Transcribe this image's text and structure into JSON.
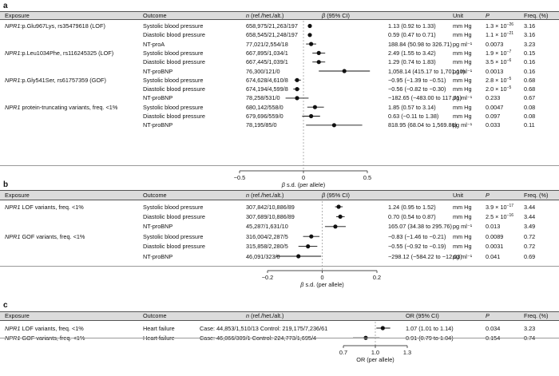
{
  "panels": [
    {
      "label": "a",
      "headers": {
        "exposure": "Exposure",
        "outcome": "Outcome",
        "n": "n (ref./het./alt.)",
        "beta": "β (95% CI)",
        "unit": "Unit",
        "p": "P",
        "freq": "Freq. (%)"
      },
      "groups": [
        {
          "gene": "NPR1",
          "rest": ":p.Glu967Lys, rs35479618 (LOF)",
          "rows": [
            {
              "outcome": "Systolic blood pressure",
              "n": "658,975/21,263/197",
              "ci": "1.13 (0.92 to 1.33)",
              "unit": "mm Hg",
              "p": "1.3 × 10",
              "pexp": "−26",
              "freq": "3.16",
              "est": 1.13,
              "lo": 0.92,
              "hi": 1.33
            },
            {
              "outcome": "Diastolic blood pressure",
              "n": "658,545/21,248/197",
              "ci": "0.59 (0.47 to 0.71)",
              "unit": "mm Hg",
              "p": "1.1 × 10",
              "pexp": "−21",
              "freq": "3.16",
              "est": 0.59,
              "lo": 0.47,
              "hi": 0.71
            },
            {
              "outcome": "NT-proA",
              "n": "77,021/2,554/18",
              "ci": "188.84 (50.98 to 326.71)",
              "unit": "pg ml⁻¹",
              "p": "0.0073",
              "pexp": "",
              "freq": "3.23",
              "est": 188.84,
              "lo": 50.98,
              "hi": 326.71
            }
          ]
        },
        {
          "gene": "NPR1",
          "rest": ":p.Leu1034Phe, rs116245325 (LOF)",
          "rows": [
            {
              "outcome": "Systolic blood pressure",
              "n": "667,895/1,034/1",
              "ci": "2.49 (1.55 to 3.42)",
              "unit": "mm Hg",
              "p": "1.9 × 10",
              "pexp": "−7",
              "freq": "0.15",
              "est": 2.49,
              "lo": 1.55,
              "hi": 3.42
            },
            {
              "outcome": "Diastolic blood pressure",
              "n": "667,445/1,039/1",
              "ci": "1.29 (0.74 to 1.83)",
              "unit": "mm Hg",
              "p": "3.5 × 10",
              "pexp": "−6",
              "freq": "0.16",
              "est": 1.29,
              "lo": 0.74,
              "hi": 1.83
            },
            {
              "outcome": "NT-proBNP",
              "n": "76,300/121/0",
              "ci": "1,058.14 (415.17 to 1,701.10)",
              "unit": "pg ml⁻¹",
              "p": "0.0013",
              "pexp": "",
              "freq": "0.16",
              "est": 1058.14,
              "lo": 415.17,
              "hi": 1701.1
            }
          ]
        },
        {
          "gene": "NPR1",
          "rest": ":p.Gly541Ser, rs61757359 (GOF)",
          "rows": [
            {
              "outcome": "Systolic blood pressure",
              "n": "674,628/4,610/8",
              "ci": "−0.95 (−1.39 to −0.51)",
              "unit": "mm Hg",
              "p": "2.8 × 10",
              "pexp": "−5",
              "freq": "0.68",
              "est": -0.95,
              "lo": -1.39,
              "hi": -0.51
            },
            {
              "outcome": "Diastolic blood pressure",
              "n": "674,194/4,599/8",
              "ci": "−0.56 (−0.82 to −0.30)",
              "unit": "mm Hg",
              "p": "2.0 × 10",
              "pexp": "−5",
              "freq": "0.68",
              "est": -0.56,
              "lo": -0.82,
              "hi": -0.3
            },
            {
              "outcome": "NT-proBNP",
              "n": "78,258/531/0",
              "ci": "−182.65 (−483.00 to 117.71)",
              "unit": "pg ml⁻¹",
              "p": "0.233",
              "pexp": "",
              "freq": "0.67",
              "est": -182.65,
              "lo": -483.0,
              "hi": 117.71
            }
          ]
        },
        {
          "gene": "NPR1",
          "rest": " protein-truncating variants, freq. <1%",
          "rows": [
            {
              "outcome": "Systolic blood pressure",
              "n": "680,142/558/0",
              "ci": "1.85 (0.57 to 3.14)",
              "unit": "mm Hg",
              "p": "0.0047",
              "pexp": "",
              "freq": "0.08",
              "est": 1.85,
              "lo": 0.57,
              "hi": 3.14
            },
            {
              "outcome": "Diastolic blood pressure",
              "n": "679,696/559/0",
              "ci": "0.63 (−0.11 to 1.38)",
              "unit": "mm Hg",
              "p": "0.097",
              "pexp": "",
              "freq": "0.08",
              "est": 0.63,
              "lo": -0.11,
              "hi": 1.38
            },
            {
              "outcome": "NT-proBNP",
              "n": "78,195/85/0",
              "ci": "818.95 (68.04 to 1,569.86)",
              "unit": "pg ml⁻¹",
              "p": "0.033",
              "pexp": "",
              "freq": "0.11",
              "est": 818.95,
              "lo": 68.04,
              "hi": 1569.86
            }
          ]
        }
      ],
      "axis": {
        "ticks": [
          "−0.5",
          "0",
          "0.5"
        ],
        "label": "β s.d. (per allele)"
      }
    },
    {
      "label": "b",
      "headers": {
        "exposure": "Exposure",
        "outcome": "Outcome",
        "n": "n (ref./het./alt.)",
        "beta": "β (95% CI)",
        "unit": "Unit",
        "p": "P",
        "freq": "Freq. (%)"
      },
      "groups": [
        {
          "gene": "NPR1",
          "rest": " LOF variants, freq. <1%",
          "rows": [
            {
              "outcome": "Systolic blood pressure",
              "n": "307,842/10,886/89",
              "ci": "1.24 (0.95 to 1.52)",
              "unit": "mm Hg",
              "p": "3.9 × 10",
              "pexp": "−17",
              "freq": "3.44",
              "est": 1.24,
              "lo": 0.95,
              "hi": 1.52
            },
            {
              "outcome": "Diastolic blood pressure",
              "n": "307,689/10,886/89",
              "ci": "0.70 (0.54 to 0.87)",
              "unit": "mm Hg",
              "p": "2.5 × 10",
              "pexp": "−16",
              "freq": "3.44",
              "est": 0.7,
              "lo": 0.54,
              "hi": 0.87
            },
            {
              "outcome": "NT-proBNP",
              "n": "45,287/1,631/10",
              "ci": "165.07 (34.38 to 295.76)",
              "unit": "pg ml⁻¹",
              "p": "0.013",
              "pexp": "",
              "freq": "3.49",
              "est": 165.07,
              "lo": 34.38,
              "hi": 295.76
            }
          ]
        },
        {
          "gene": "NPR1",
          "rest": " GOF variants, freq. <1%",
          "rows": [
            {
              "outcome": "Systolic blood pressure",
              "n": "316,004/2,287/5",
              "ci": "−0.83 (−1.46 to −0.21)",
              "unit": "mm Hg",
              "p": "0.0089",
              "pexp": "",
              "freq": "0.72",
              "est": -0.83,
              "lo": -1.46,
              "hi": -0.21
            },
            {
              "outcome": "Diastolic blood pressure",
              "n": "315,858/2,280/5",
              "ci": "−0.55 (−0.92 to −0.19)",
              "unit": "mm Hg",
              "p": "0.0031",
              "pexp": "",
              "freq": "0.72",
              "est": -0.55,
              "lo": -0.92,
              "hi": -0.19
            },
            {
              "outcome": "NT-proBNP",
              "n": "46,091/323/0",
              "ci": "−298.12 (−584.22 to −12.03)",
              "unit": "pg ml⁻¹",
              "p": "0.041",
              "pexp": "",
              "freq": "0.69",
              "est": -298.12,
              "lo": -584.22,
              "hi": -12.03
            }
          ]
        }
      ],
      "axis": {
        "ticks": [
          "−0.2",
          "0",
          "0.2"
        ],
        "label": "β s.d. (per allele)"
      }
    },
    {
      "label": "c",
      "headers": {
        "exposure": "Exposure",
        "outcome": "Outcome",
        "n": "n (ref./het./alt.)",
        "beta": "OR (95% CI)",
        "unit": "",
        "p": "P",
        "freq": "Freq. (%)"
      },
      "groups": [
        {
          "gene": "NPR1",
          "rest": " LOF variants, freq. <1%",
          "rows": [
            {
              "outcome": "Heart failure",
              "n": "Case: 44,853/1,510/13  Control: 219,175/7,236/61",
              "ci": "1.07 (1.01 to 1.14)",
              "unit": "",
              "p": "0.034",
              "pexp": "",
              "freq": "3.23",
              "est": 1.07,
              "lo": 1.01,
              "hi": 1.14
            }
          ]
        },
        {
          "gene": "NPR1",
          "rest": " GOF variants, freq. <1%",
          "rows": [
            {
              "outcome": "Heart failure",
              "n": "Case: 46,066/309/1  Control: 224,773/1,695/4",
              "ci": "0.91 (0.79 to 1.04)",
              "unit": "",
              "p": "0.154",
              "pexp": "",
              "freq": "0.74",
              "est": 0.91,
              "lo": 0.79,
              "hi": 1.04
            }
          ]
        }
      ],
      "axis": {
        "ticks": [
          "0.7",
          "1.0",
          "1.3"
        ],
        "label": "OR (per allele)"
      }
    }
  ],
  "chart_data": [
    {
      "type": "scatter",
      "panel": "a",
      "xlabel": "β s.d. (per allele)",
      "xlim": [
        -0.5,
        0.5
      ],
      "xticks": [
        -0.5,
        0,
        0.5
      ],
      "series": [
        {
          "points_sd": [
            {
              "est": 0.05,
              "lo": 0.04,
              "hi": 0.06
            },
            {
              "est": 0.05,
              "lo": 0.04,
              "hi": 0.06
            },
            {
              "est": 0.06,
              "lo": 0.02,
              "hi": 0.1
            },
            {
              "est": 0.12,
              "lo": 0.07,
              "hi": 0.17
            },
            {
              "est": 0.12,
              "lo": 0.07,
              "hi": 0.17
            },
            {
              "est": 0.32,
              "lo": 0.12,
              "hi": 0.52
            },
            {
              "est": -0.05,
              "lo": -0.07,
              "hi": -0.02
            },
            {
              "est": -0.05,
              "lo": -0.08,
              "hi": -0.03
            },
            {
              "est": -0.05,
              "lo": -0.14,
              "hi": 0.04
            },
            {
              "est": 0.09,
              "lo": 0.03,
              "hi": 0.16
            },
            {
              "est": 0.06,
              "lo": -0.01,
              "hi": 0.13
            },
            {
              "est": 0.24,
              "lo": 0.02,
              "hi": 0.46
            }
          ]
        }
      ]
    },
    {
      "type": "scatter",
      "panel": "b",
      "xlabel": "β s.d. (per allele)",
      "xlim": [
        -0.2,
        0.2
      ],
      "xticks": [
        -0.2,
        0,
        0.2
      ],
      "series": [
        {
          "points_sd": [
            {
              "est": 0.06,
              "lo": 0.047,
              "hi": 0.075
            },
            {
              "est": 0.066,
              "lo": 0.051,
              "hi": 0.082
            },
            {
              "est": 0.048,
              "lo": 0.01,
              "hi": 0.086
            },
            {
              "est": -0.04,
              "lo": -0.07,
              "hi": -0.01
            },
            {
              "est": -0.052,
              "lo": -0.087,
              "hi": -0.018
            },
            {
              "est": -0.087,
              "lo": -0.17,
              "hi": -0.004
            }
          ]
        }
      ]
    },
    {
      "type": "scatter",
      "panel": "c",
      "xlabel": "OR (per allele)",
      "xlim": [
        0.7,
        1.3
      ],
      "xticks": [
        0.7,
        1.0,
        1.3
      ],
      "series": [
        {
          "points": [
            {
              "est": 1.07,
              "lo": 1.01,
              "hi": 1.14
            },
            {
              "est": 0.91,
              "lo": 0.79,
              "hi": 1.04
            }
          ]
        }
      ]
    }
  ]
}
